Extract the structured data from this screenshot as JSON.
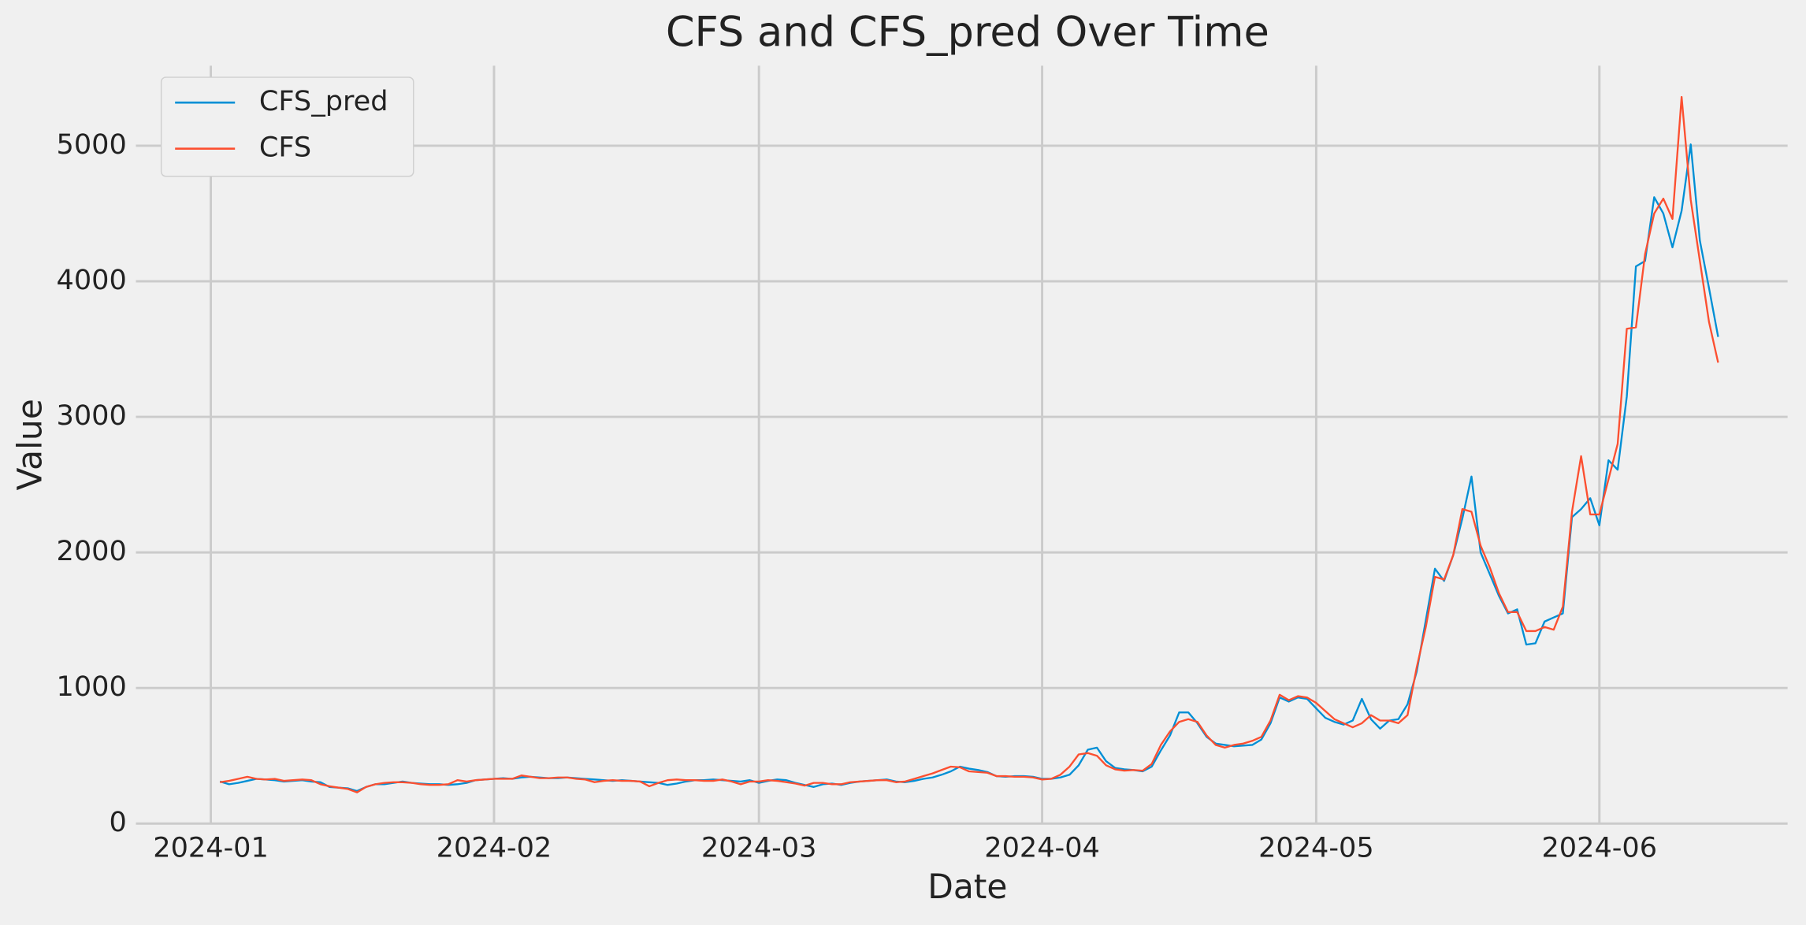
{
  "chart_data": {
    "type": "line",
    "title": "CFS and CFS_pred Over Time",
    "x_label": "Date",
    "y_label": "Value",
    "x": [
      1,
      2,
      3,
      4,
      5,
      6,
      7,
      8,
      9,
      10,
      11,
      12,
      13,
      14,
      15,
      16,
      17,
      18,
      19,
      20,
      21,
      22,
      23,
      24,
      25,
      26,
      27,
      28,
      29,
      30,
      31,
      32,
      33,
      34,
      35,
      36,
      37,
      38,
      39,
      40,
      41,
      42,
      43,
      44,
      45,
      46,
      47,
      48,
      49,
      50,
      51,
      52,
      53,
      54,
      55,
      56,
      57,
      58,
      59,
      60,
      61,
      62,
      63,
      64,
      65,
      66,
      67,
      68,
      69,
      70,
      71,
      72,
      73,
      74,
      75,
      76,
      77,
      78,
      79,
      80,
      81,
      82,
      83,
      84,
      85,
      86,
      87,
      88,
      89,
      90,
      91,
      92,
      93,
      94,
      95,
      96,
      97,
      98,
      99,
      100,
      101,
      102,
      103,
      104,
      105,
      106,
      107,
      108,
      109,
      110,
      111,
      112,
      113,
      114,
      115,
      116,
      117,
      118,
      119,
      120,
      121,
      122,
      123,
      124,
      125,
      126,
      127,
      128,
      129,
      130,
      131,
      132,
      133,
      134,
      135,
      136,
      137,
      138,
      139,
      140,
      141,
      142,
      143,
      144,
      145,
      146,
      147,
      148,
      149,
      150,
      151,
      152,
      153,
      154,
      155,
      156,
      157,
      158,
      159,
      160,
      161,
      162,
      163,
      164,
      165
    ],
    "series": [
      {
        "name": "CFS_pred",
        "color": "#008fd5",
        "values": [
          310,
          290,
          300,
          315,
          330,
          325,
          320,
          310,
          315,
          320,
          310,
          305,
          270,
          265,
          260,
          240,
          270,
          290,
          290,
          300,
          310,
          300,
          295,
          290,
          290,
          285,
          290,
          300,
          320,
          325,
          330,
          335,
          330,
          340,
          345,
          340,
          335,
          335,
          340,
          335,
          330,
          325,
          320,
          315,
          320,
          315,
          310,
          305,
          300,
          285,
          295,
          310,
          320,
          320,
          325,
          320,
          315,
          310,
          320,
          300,
          315,
          325,
          320,
          300,
          285,
          270,
          290,
          295,
          285,
          300,
          310,
          315,
          320,
          325,
          310,
          305,
          315,
          330,
          340,
          360,
          385,
          420,
          405,
          395,
          380,
          350,
          345,
          350,
          350,
          345,
          330,
          330,
          340,
          360,
          430,
          545,
          560,
          460,
          410,
          400,
          395,
          385,
          420,
          540,
          650,
          820,
          820,
          740,
          640,
          590,
          580,
          570,
          575,
          580,
          620,
          740,
          930,
          900,
          930,
          920,
          850,
          780,
          750,
          730,
          760,
          920,
          770,
          700,
          760,
          770,
          880,
          1120,
          1500,
          1880,
          1790,
          1980,
          2250,
          2560,
          2000,
          1840,
          1680,
          1550,
          1580,
          1320,
          1330,
          1490,
          1520,
          1550,
          2260,
          2320,
          2400,
          2200,
          2680,
          2610,
          3150,
          4110,
          4150,
          4620,
          4500,
          4250,
          4520,
          5010,
          4300,
          3950,
          3590
        ]
      },
      {
        "name": "CFS",
        "color": "#fc4f30",
        "values": [
          305,
          315,
          330,
          345,
          330,
          325,
          330,
          315,
          320,
          325,
          320,
          290,
          275,
          265,
          255,
          230,
          270,
          290,
          300,
          305,
          305,
          300,
          290,
          285,
          285,
          290,
          320,
          310,
          320,
          325,
          330,
          330,
          330,
          355,
          345,
          335,
          335,
          340,
          340,
          330,
          325,
          305,
          315,
          320,
          315,
          315,
          310,
          275,
          300,
          320,
          325,
          320,
          320,
          315,
          315,
          325,
          310,
          290,
          310,
          310,
          320,
          315,
          305,
          295,
          280,
          300,
          300,
          290,
          290,
          305,
          310,
          315,
          320,
          320,
          305,
          310,
          330,
          350,
          370,
          395,
          420,
          415,
          385,
          380,
          375,
          350,
          350,
          345,
          345,
          340,
          325,
          330,
          360,
          420,
          510,
          520,
          500,
          430,
          400,
          390,
          395,
          390,
          440,
          580,
          680,
          750,
          770,
          750,
          650,
          580,
          560,
          580,
          590,
          610,
          640,
          760,
          950,
          910,
          940,
          930,
          890,
          830,
          770,
          740,
          710,
          740,
          800,
          760,
          760,
          740,
          800,
          1150,
          1450,
          1820,
          1800,
          1980,
          2320,
          2300,
          2050,
          1890,
          1700,
          1560,
          1560,
          1420,
          1420,
          1450,
          1430,
          1600,
          2300,
          2710,
          2280,
          2280,
          2540,
          2800,
          3650,
          3660,
          4200,
          4500,
          4610,
          4460,
          5360,
          4600,
          4150,
          3700,
          3400
        ]
      }
    ],
    "xlim": [
      -8.2,
      172.6
    ],
    "xticks": [
      {
        "value": 0,
        "label": "2024-01"
      },
      {
        "value": 31,
        "label": "2024-02"
      },
      {
        "value": 60,
        "label": "2024-03"
      },
      {
        "value": 91,
        "label": "2024-04"
      },
      {
        "value": 121,
        "label": "2024-05"
      },
      {
        "value": 152,
        "label": "2024-06"
      }
    ],
    "ylim": [
      0,
      5590
    ],
    "yticks": [
      0,
      1000,
      2000,
      3000,
      4000,
      5000
    ],
    "grid": true,
    "legend": "upper left"
  }
}
